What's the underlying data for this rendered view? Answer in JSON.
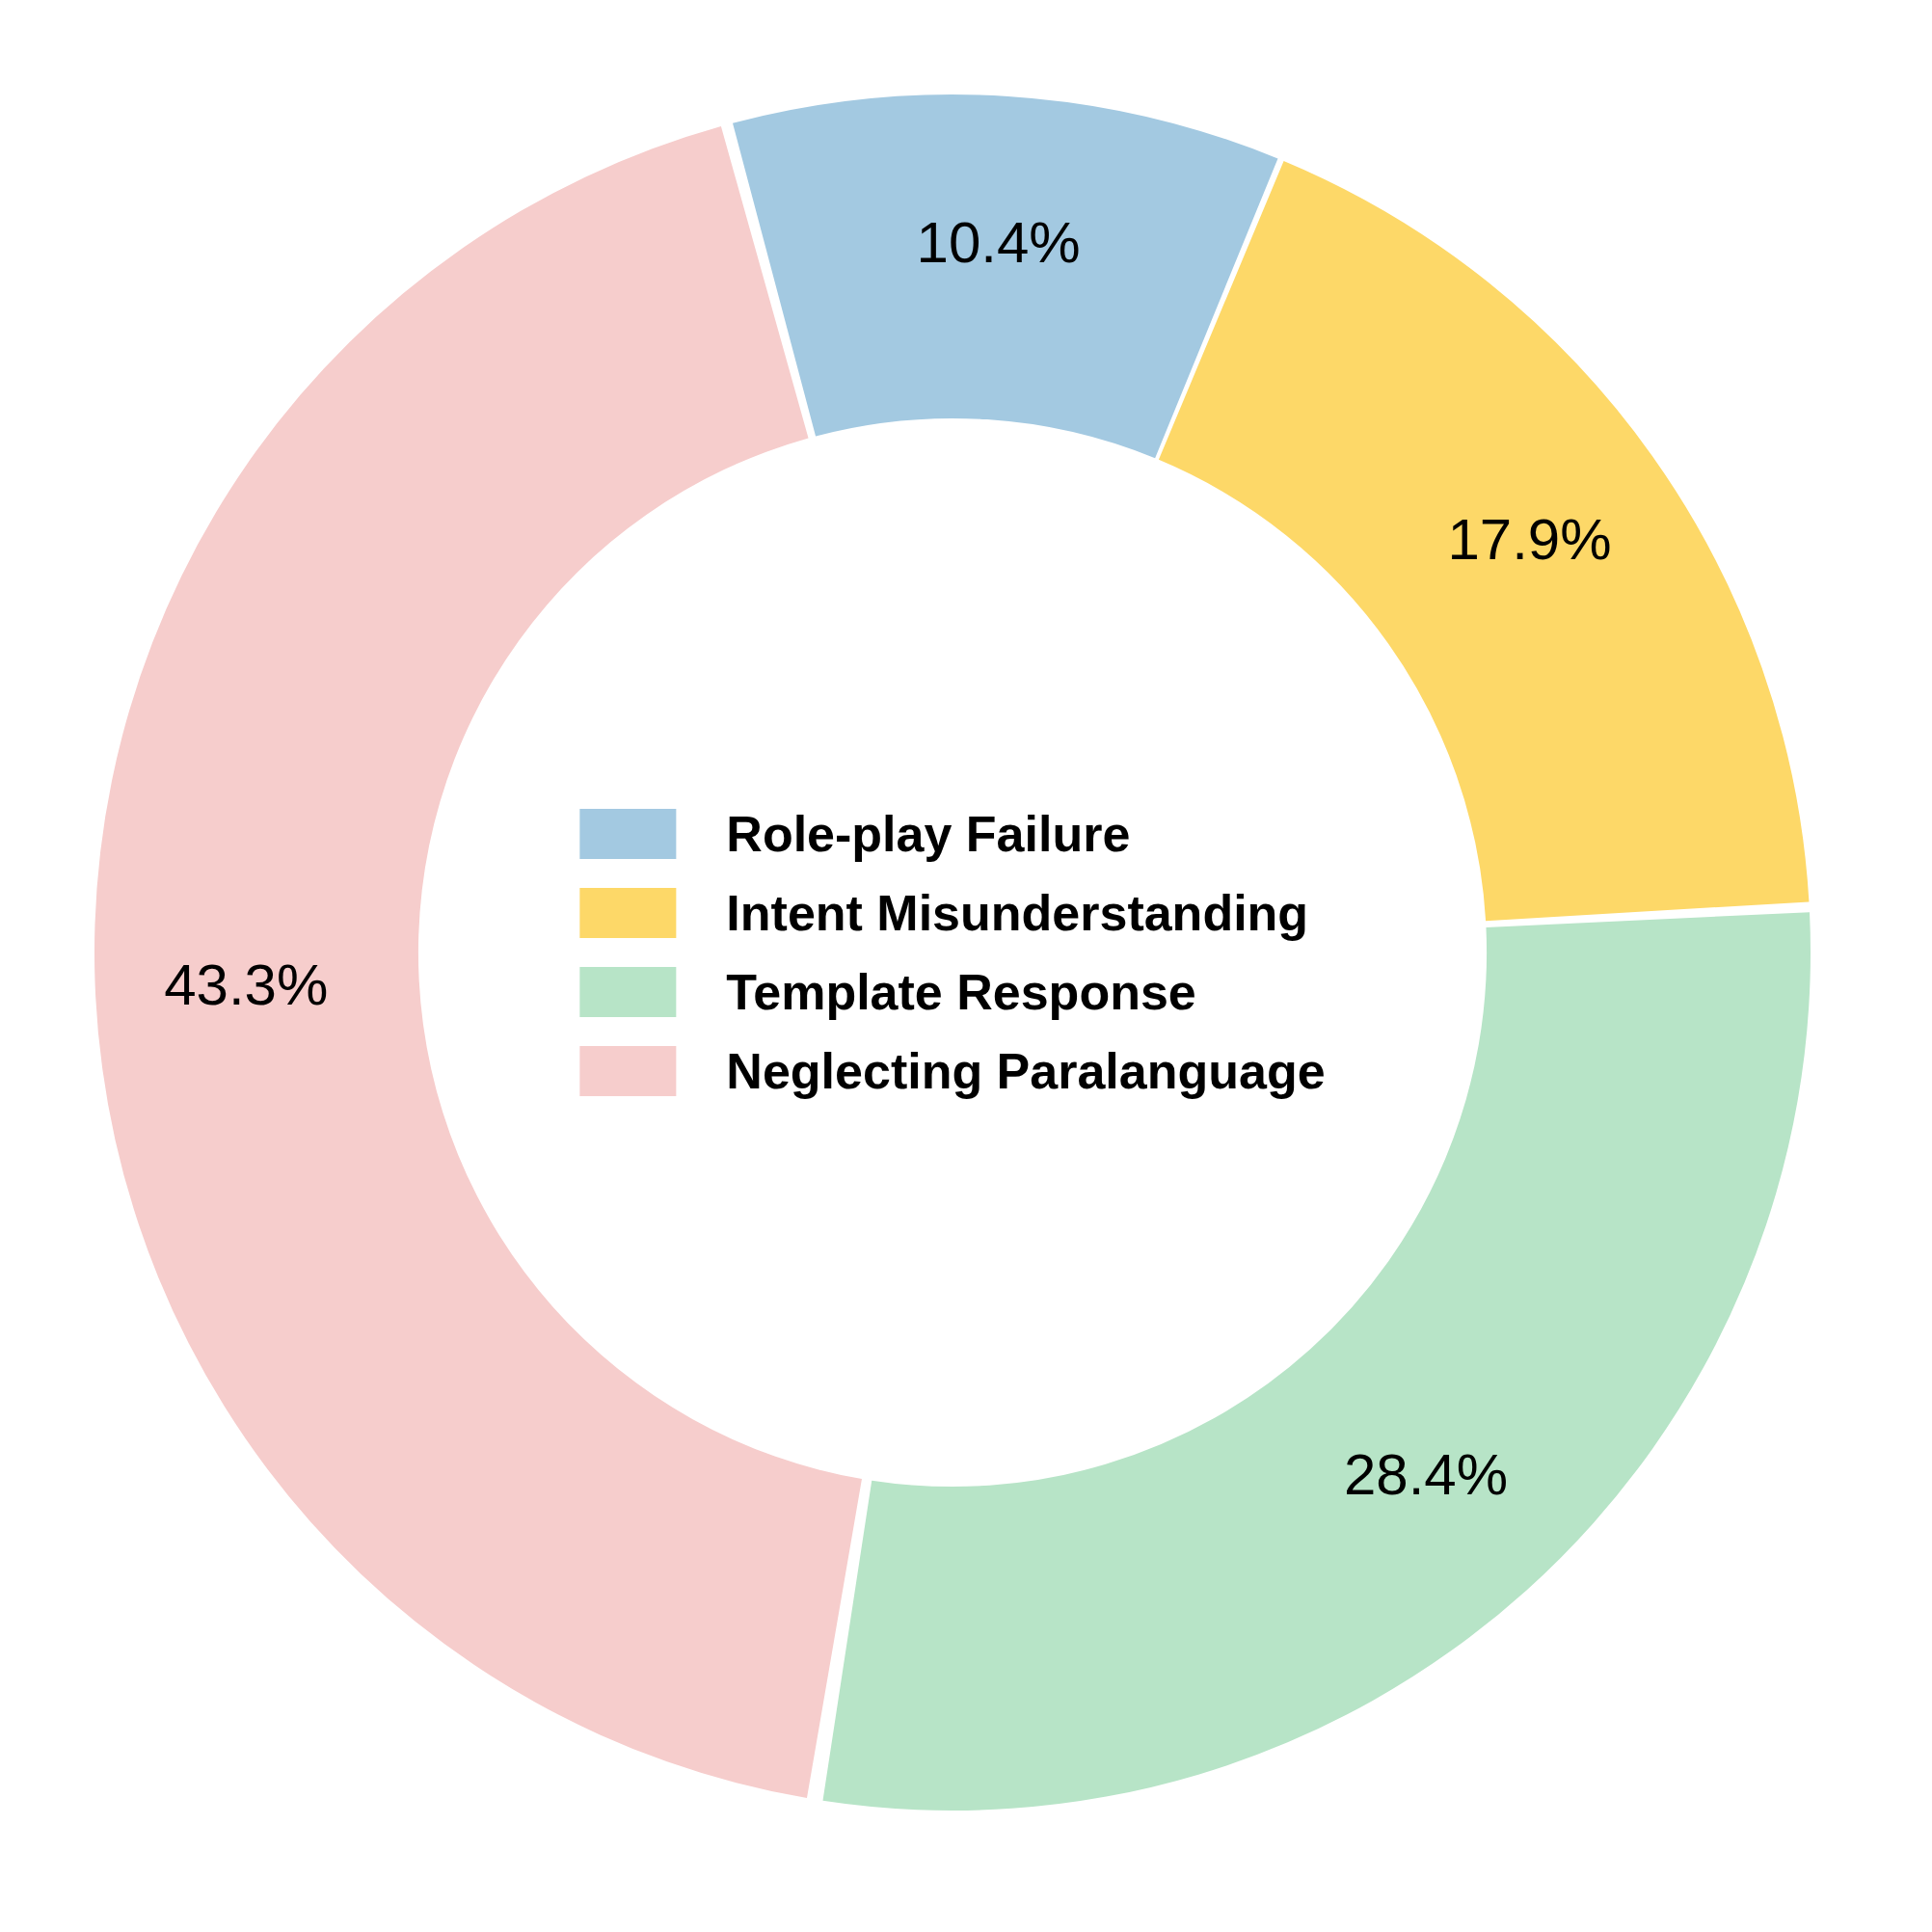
{
  "chart_data": {
    "type": "donut",
    "categories": [
      "Role-play Failure",
      "Intent Misunderstanding",
      "Template Response",
      "Neglecting Paralanguage"
    ],
    "values": [
      10.4,
      17.9,
      28.4,
      43.3
    ],
    "colors": [
      "#a3c9e1",
      "#fdd868",
      "#b7e4c7",
      "#f6cdcc"
    ],
    "value_labels": [
      "10.4%",
      "17.9%",
      "28.4%",
      "43.3%"
    ],
    "legend": "center"
  }
}
